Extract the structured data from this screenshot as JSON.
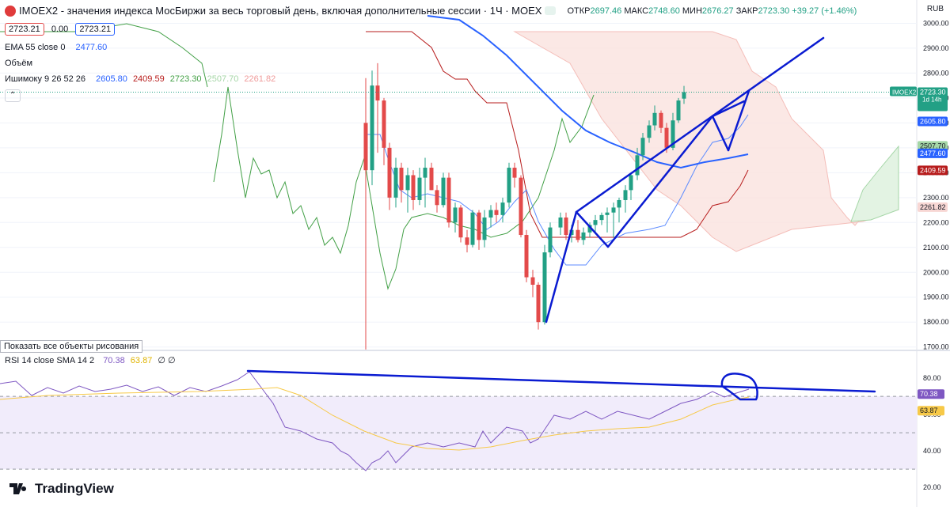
{
  "header": {
    "title": "IMOEX2 - значения индекса МосБиржи за весь торговый день, включая дополнительные сессии · 1Ч · MOEX",
    "open_label": "ОТКР",
    "open": "2697.46",
    "high_label": "МАКС",
    "high": "2748.60",
    "low_label": "МИН",
    "low": "2676.27",
    "close_label": "ЗАКР",
    "close": "2723.30",
    "change": "+39.27 (+1.46%)",
    "currency": "RUB"
  },
  "quote_row": {
    "sell": "2723.21",
    "spread": "0.00",
    "buy": "2723.21"
  },
  "indicators": {
    "ema_label": "EMA 55 close 0",
    "ema_value": "2477.60",
    "volume_label": "Объём",
    "ichimoku_label": "Ишимоку 9 26 52 26",
    "ichimoku_values": [
      "2605.80",
      "2409.59",
      "2723.30",
      "2507.70",
      "2261.82"
    ],
    "rsi_label": "RSI 14 close SMA 14 2",
    "rsi_values": [
      "70.38",
      "63.87"
    ],
    "rsi_zeros": "∅ ∅"
  },
  "tooltip": "Показать все объекты рисования",
  "brand": "TradingView",
  "colors": {
    "up": "#22a085",
    "down": "#e34a4a",
    "ema": "#2962ff",
    "tenkan": "#2962ff",
    "kijun": "#b71c1c",
    "lagging": "#43a047",
    "span": "#f3b3ad",
    "rsi": "#7e57c2",
    "rsima": "#f7c948",
    "draw": "#0a1bd1"
  },
  "chart_data": {
    "type": "candlestick",
    "price_axis": {
      "ticks": [
        3000,
        2900,
        2800,
        2700,
        2600,
        2500,
        2400,
        2300,
        2200,
        2100,
        2000,
        1900,
        1800,
        1700
      ],
      "range": [
        1680,
        3030
      ]
    },
    "price_labels": [
      {
        "label": "IMOEX2",
        "value": 2723.3,
        "color": "#22a085",
        "text": "2723.30"
      },
      {
        "value": 2605.8,
        "color": "#2962ff",
        "text": "2605.80"
      },
      {
        "value": 2507.7,
        "color": "#a5d6a7",
        "text": "2507.70"
      },
      {
        "value": 2477.6,
        "color": "#2962ff",
        "text": "2477.60"
      },
      {
        "value": 2409.59,
        "color": "#b71c1c",
        "text": "2409.59"
      },
      {
        "value": 2261.82,
        "color": "#f8d7d4",
        "text": "2261.82"
      }
    ],
    "countdown": "1d 14h",
    "candles": [
      [
        2600,
        1690,
        2780,
        2410
      ],
      [
        2410,
        2350,
        2810,
        2750
      ],
      [
        2750,
        2480,
        2840,
        2690
      ],
      [
        2690,
        2430,
        2700,
        2500
      ],
      [
        2500,
        2250,
        2520,
        2300
      ],
      [
        2300,
        2260,
        2460,
        2420
      ],
      [
        2420,
        2280,
        2440,
        2330
      ],
      [
        2330,
        2240,
        2420,
        2390
      ],
      [
        2390,
        2250,
        2410,
        2290
      ],
      [
        2290,
        2270,
        2420,
        2380
      ],
      [
        2380,
        2260,
        2460,
        2420
      ],
      [
        2420,
        2330,
        2440,
        2330
      ],
      [
        2330,
        2240,
        2350,
        2270
      ],
      [
        2270,
        2260,
        2400,
        2380
      ],
      [
        2380,
        2180,
        2400,
        2200
      ],
      [
        2200,
        2160,
        2280,
        2260
      ],
      [
        2260,
        2120,
        2270,
        2140
      ],
      [
        2140,
        2080,
        2170,
        2110
      ],
      [
        2110,
        2100,
        2250,
        2240
      ],
      [
        2240,
        2090,
        2250,
        2130
      ],
      [
        2130,
        2100,
        2250,
        2220
      ],
      [
        2220,
        2180,
        2270,
        2250
      ],
      [
        2250,
        2200,
        2280,
        2230
      ],
      [
        2230,
        2200,
        2300,
        2280
      ],
      [
        2280,
        2260,
        2440,
        2420
      ],
      [
        2420,
        2340,
        2440,
        2380
      ],
      [
        2380,
        2140,
        2390,
        2150
      ],
      [
        2150,
        1960,
        2170,
        1980
      ],
      [
        1980,
        1900,
        2010,
        1950
      ],
      [
        1950,
        1770,
        1960,
        1800
      ],
      [
        1800,
        1790,
        2110,
        2080
      ],
      [
        2080,
        2060,
        2200,
        2180
      ],
      [
        2180,
        2150,
        2240,
        2220
      ],
      [
        2220,
        2130,
        2240,
        2150
      ],
      [
        2150,
        2120,
        2190,
        2170
      ],
      [
        2170,
        2120,
        2210,
        2130
      ],
      [
        2130,
        2110,
        2180,
        2160
      ],
      [
        2160,
        2140,
        2200,
        2190
      ],
      [
        2190,
        2160,
        2230,
        2210
      ],
      [
        2210,
        2190,
        2240,
        2230
      ],
      [
        2230,
        2160,
        2260,
        2240
      ],
      [
        2240,
        2140,
        2280,
        2260
      ],
      [
        2260,
        2200,
        2300,
        2290
      ],
      [
        2290,
        2240,
        2350,
        2330
      ],
      [
        2330,
        2290,
        2400,
        2390
      ],
      [
        2390,
        2370,
        2500,
        2470
      ],
      [
        2470,
        2450,
        2560,
        2540
      ],
      [
        2540,
        2520,
        2610,
        2590
      ],
      [
        2590,
        2570,
        2670,
        2640
      ],
      [
        2640,
        2560,
        2650,
        2580
      ],
      [
        2580,
        2480,
        2600,
        2500
      ],
      [
        2500,
        2490,
        2640,
        2610
      ],
      [
        2610,
        2600,
        2700,
        2690
      ],
      [
        2697.46,
        2676.27,
        2748.6,
        2723.3
      ]
    ],
    "candle_x": [
      462,
      470,
      477,
      485,
      492,
      500,
      507,
      515,
      522,
      530,
      537,
      545,
      552,
      560,
      567,
      575,
      582,
      590,
      597,
      605,
      612,
      620,
      627,
      635,
      643,
      650,
      658,
      665,
      673,
      680,
      688,
      695,
      708,
      715,
      722,
      730,
      737,
      745,
      752,
      760,
      767,
      775,
      782,
      790,
      797,
      805,
      812,
      820,
      827,
      835,
      842,
      850,
      857,
      864
    ],
    "rsi_axis": {
      "ticks": [
        80,
        60,
        40,
        20
      ],
      "range": [
        14,
        87
      ],
      "bands": [
        70,
        50,
        30
      ]
    }
  }
}
